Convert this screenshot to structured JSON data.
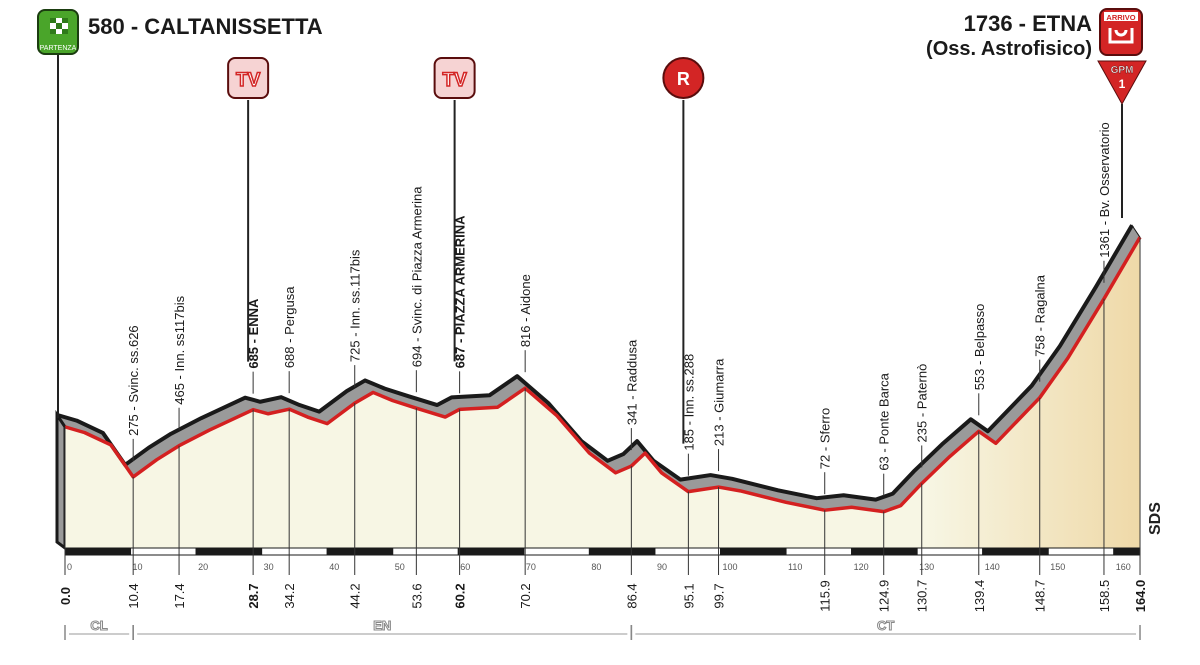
{
  "start": {
    "label": "580 - CALTANISSETTA",
    "badge": "PARTENZA",
    "icon": "checkered-flag-icon"
  },
  "finish": {
    "label_line1": "1736 - ETNA",
    "label_line2": "(Oss. Astrofisico)",
    "badge": "ARRIVO",
    "icon": "finish-arch-icon",
    "gpm_label": "GPM",
    "gpm_category": "1"
  },
  "markers": [
    {
      "type": "TV",
      "km": 28.7,
      "icon": "tv-icon"
    },
    {
      "type": "TV",
      "km": 60.2,
      "icon": "tv-icon"
    },
    {
      "type": "R",
      "km": 95.1,
      "icon": "refreshment-icon"
    }
  ],
  "colors": {
    "profile_top": "#1a1a1a",
    "profile_side": "#9a9a9a",
    "route_line": "#d42020",
    "fill": "#f7f6e4",
    "fill_climb": "#efd9a8",
    "badge_red": "#d32525",
    "badge_green": "#4aa52a"
  },
  "chart_data": {
    "type": "area",
    "xlabel": "",
    "ylabel": "",
    "xlim": [
      0,
      164
    ],
    "x_ticks": [
      0,
      10,
      20,
      30,
      40,
      50,
      60,
      70,
      80,
      90,
      100,
      110,
      120,
      130,
      140,
      150,
      160
    ],
    "profile": [
      [
        0,
        580
      ],
      [
        3,
        545
      ],
      [
        7,
        470
      ],
      [
        10.4,
        275
      ],
      [
        14,
        380
      ],
      [
        17.4,
        465
      ],
      [
        22,
        560
      ],
      [
        28.7,
        685
      ],
      [
        31,
        660
      ],
      [
        34.2,
        688
      ],
      [
        37,
        640
      ],
      [
        40,
        600
      ],
      [
        44.2,
        725
      ],
      [
        47,
        790
      ],
      [
        50,
        740
      ],
      [
        53.6,
        694
      ],
      [
        58,
        640
      ],
      [
        60.2,
        687
      ],
      [
        66,
        700
      ],
      [
        70.2,
        816
      ],
      [
        75,
        650
      ],
      [
        80,
        420
      ],
      [
        84,
        300
      ],
      [
        86.4,
        341
      ],
      [
        88.5,
        420
      ],
      [
        91,
        300
      ],
      [
        95.1,
        185
      ],
      [
        99.7,
        213
      ],
      [
        103,
        190
      ],
      [
        110,
        120
      ],
      [
        115.9,
        72
      ],
      [
        120,
        90
      ],
      [
        124.9,
        63
      ],
      [
        127.5,
        100
      ],
      [
        130.7,
        235
      ],
      [
        135,
        400
      ],
      [
        139.4,
        553
      ],
      [
        142,
        480
      ],
      [
        148.7,
        758
      ],
      [
        153,
        1000
      ],
      [
        158.5,
        1361
      ],
      [
        164,
        1736
      ]
    ],
    "points": [
      {
        "km": "0.0",
        "kmv": 0,
        "label": "",
        "bold": true
      },
      {
        "km": "10.4",
        "kmv": 10.4,
        "label": "275 - Svinc. ss.626",
        "bold": false
      },
      {
        "km": "17.4",
        "kmv": 17.4,
        "label": "465 - Inn. ss117bis",
        "bold": false
      },
      {
        "km": "28.7",
        "kmv": 28.7,
        "label": "685 - ENNA",
        "bold": true
      },
      {
        "km": "34.2",
        "kmv": 34.2,
        "label": "688 - Pergusa",
        "bold": false
      },
      {
        "km": "44.2",
        "kmv": 44.2,
        "label": "725 - Inn. ss.117bis",
        "bold": false
      },
      {
        "km": "53.6",
        "kmv": 53.6,
        "label": "694 - Svinc. di Piazza Armerina",
        "bold": false
      },
      {
        "km": "60.2",
        "kmv": 60.2,
        "label": "687 - PIAZZA ARMERINA",
        "bold": true
      },
      {
        "km": "70.2",
        "kmv": 70.2,
        "label": "816 - Aidone",
        "bold": false
      },
      {
        "km": "86.4",
        "kmv": 86.4,
        "label": "341 - Raddusa",
        "bold": false
      },
      {
        "km": "95.1",
        "kmv": 95.1,
        "label": "185 - Inn. ss.288",
        "bold": false
      },
      {
        "km": "99.7",
        "kmv": 99.7,
        "label": "213 - Giumarra",
        "bold": false
      },
      {
        "km": "115.9",
        "kmv": 115.9,
        "label": "72 - Sferro",
        "bold": false
      },
      {
        "km": "124.9",
        "kmv": 124.9,
        "label": "63 - Ponte Barca",
        "bold": false
      },
      {
        "km": "130.7",
        "kmv": 130.7,
        "label": "235 - Paternò",
        "bold": false
      },
      {
        "km": "139.4",
        "kmv": 139.4,
        "label": "553 - Belpasso",
        "bold": false
      },
      {
        "km": "148.7",
        "kmv": 148.7,
        "label": "758 - Ragalna",
        "bold": false
      },
      {
        "km": "158.5",
        "kmv": 158.5,
        "label": "1361 - Bv. Osservatorio",
        "bold": false
      },
      {
        "km": "164.0",
        "kmv": 164,
        "label": "",
        "bold": true
      }
    ],
    "provinces": [
      {
        "code": "CL",
        "from": 0,
        "to": 10.4
      },
      {
        "code": "EN",
        "from": 10.4,
        "to": 86.4
      },
      {
        "code": "CT",
        "from": 86.4,
        "to": 164
      }
    ]
  },
  "logo": "SDS"
}
